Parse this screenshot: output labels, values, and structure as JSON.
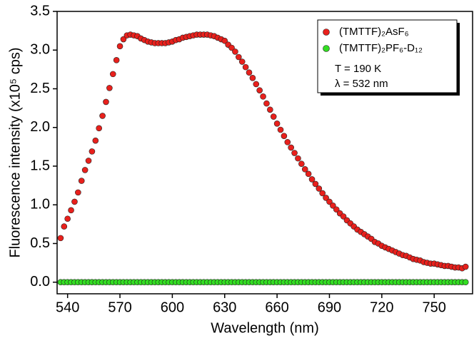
{
  "chart_data": {
    "type": "scatter",
    "x_label": "Wavelength (nm)",
    "y_label": "Fluorescence intensity (x10⁵ cps)",
    "annotations": [
      "T = 190 K",
      "λ = 532 nm"
    ],
    "xlim": [
      534,
      772
    ],
    "ylim": [
      -0.15,
      3.5
    ],
    "xticks": [
      540,
      570,
      600,
      630,
      660,
      690,
      720,
      750
    ],
    "yticks": [
      {
        "value": 0,
        "label": "0.0"
      },
      0.5,
      {
        "value": 1,
        "label": "1.0"
      },
      1.5,
      {
        "value": 2,
        "label": "2.0"
      },
      2.5,
      {
        "value": 3,
        "label": "3.0"
      },
      3.5
    ],
    "legend": "upper right",
    "x": [
      536,
      538,
      540,
      542,
      544,
      546,
      548,
      550,
      552,
      554,
      556,
      558,
      560,
      562,
      564,
      566,
      568,
      570,
      572,
      574,
      576,
      578,
      580,
      582,
      584,
      586,
      588,
      590,
      592,
      594,
      596,
      598,
      600,
      602,
      604,
      606,
      608,
      610,
      612,
      614,
      616,
      618,
      620,
      622,
      624,
      626,
      628,
      630,
      632,
      634,
      636,
      638,
      640,
      642,
      644,
      646,
      648,
      650,
      652,
      654,
      656,
      658,
      660,
      662,
      664,
      666,
      668,
      670,
      672,
      674,
      676,
      678,
      680,
      682,
      684,
      686,
      688,
      690,
      692,
      694,
      696,
      698,
      700,
      702,
      704,
      706,
      708,
      710,
      712,
      714,
      716,
      718,
      720,
      722,
      724,
      726,
      728,
      730,
      732,
      734,
      736,
      738,
      740,
      742,
      744,
      746,
      748,
      750,
      752,
      754,
      756,
      758,
      760,
      762,
      764,
      766,
      768
    ],
    "series": [
      {
        "name": "(TMTTF)₂AsF₆",
        "color": "#e8201c",
        "values": [
          0.57,
          0.72,
          0.82,
          0.93,
          1.04,
          1.16,
          1.31,
          1.45,
          1.57,
          1.69,
          1.83,
          1.99,
          2.15,
          2.33,
          2.51,
          2.69,
          2.87,
          3.05,
          3.14,
          3.19,
          3.2,
          3.19,
          3.18,
          3.15,
          3.13,
          3.11,
          3.1,
          3.09,
          3.09,
          3.09,
          3.09,
          3.1,
          3.11,
          3.13,
          3.14,
          3.16,
          3.17,
          3.18,
          3.19,
          3.2,
          3.2,
          3.2,
          3.2,
          3.19,
          3.18,
          3.16,
          3.14,
          3.12,
          3.07,
          3.03,
          2.98,
          2.91,
          2.85,
          2.78,
          2.71,
          2.64,
          2.56,
          2.48,
          2.4,
          2.31,
          2.23,
          2.14,
          2.05,
          1.97,
          1.89,
          1.81,
          1.74,
          1.67,
          1.6,
          1.53,
          1.46,
          1.4,
          1.33,
          1.27,
          1.21,
          1.15,
          1.09,
          1.04,
          0.99,
          0.94,
          0.89,
          0.85,
          0.8,
          0.76,
          0.72,
          0.68,
          0.65,
          0.62,
          0.59,
          0.56,
          0.52,
          0.5,
          0.47,
          0.45,
          0.43,
          0.41,
          0.39,
          0.37,
          0.35,
          0.34,
          0.32,
          0.3,
          0.29,
          0.28,
          0.26,
          0.25,
          0.24,
          0.24,
          0.23,
          0.22,
          0.21,
          0.21,
          0.2,
          0.19,
          0.19,
          0.18,
          0.2
        ]
      },
      {
        "name": "(TMTTF)₂PF₆-D₁₂",
        "color": "#33dd22",
        "values": [
          0,
          0,
          0,
          0,
          0,
          0,
          0,
          0,
          0,
          0,
          0,
          0,
          0,
          0,
          0,
          0,
          0,
          0,
          0,
          0,
          0,
          0,
          0,
          0,
          0,
          0,
          0,
          0,
          0,
          0,
          0,
          0,
          0,
          0,
          0,
          0,
          0,
          0,
          0,
          0,
          0,
          0,
          0,
          0,
          0,
          0,
          0,
          0,
          0,
          0,
          0,
          0,
          0,
          0,
          0,
          0,
          0,
          0,
          0,
          0,
          0,
          0,
          0,
          0,
          0,
          0,
          0,
          0,
          0,
          0,
          0,
          0,
          0,
          0,
          0,
          0,
          0,
          0,
          0,
          0,
          0,
          0,
          0,
          0,
          0,
          0,
          0,
          0,
          0,
          0,
          0,
          0,
          0,
          0,
          0,
          0,
          0,
          0,
          0,
          0,
          0,
          0,
          0,
          0,
          0,
          0,
          0,
          0,
          0,
          0,
          0,
          0,
          0,
          0,
          0,
          0,
          0
        ]
      }
    ]
  }
}
